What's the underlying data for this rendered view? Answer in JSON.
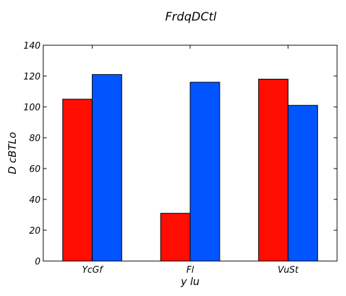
{
  "chart_data": {
    "type": "bar",
    "title": "FrdqDCtl",
    "xlabel": "y lu",
    "ylabel": "D cBTLo",
    "categories": [
      "YcGf",
      "Fl",
      "VuSt"
    ],
    "series": [
      {
        "values": [
          105,
          31,
          118
        ],
        "color": "#ff0d00"
      },
      {
        "values": [
          121,
          116,
          101
        ],
        "color": "#0055ff"
      }
    ],
    "ylim": [
      0,
      140
    ],
    "yticks": [
      0,
      20,
      40,
      60,
      80,
      100,
      120,
      140
    ],
    "grid": false
  }
}
